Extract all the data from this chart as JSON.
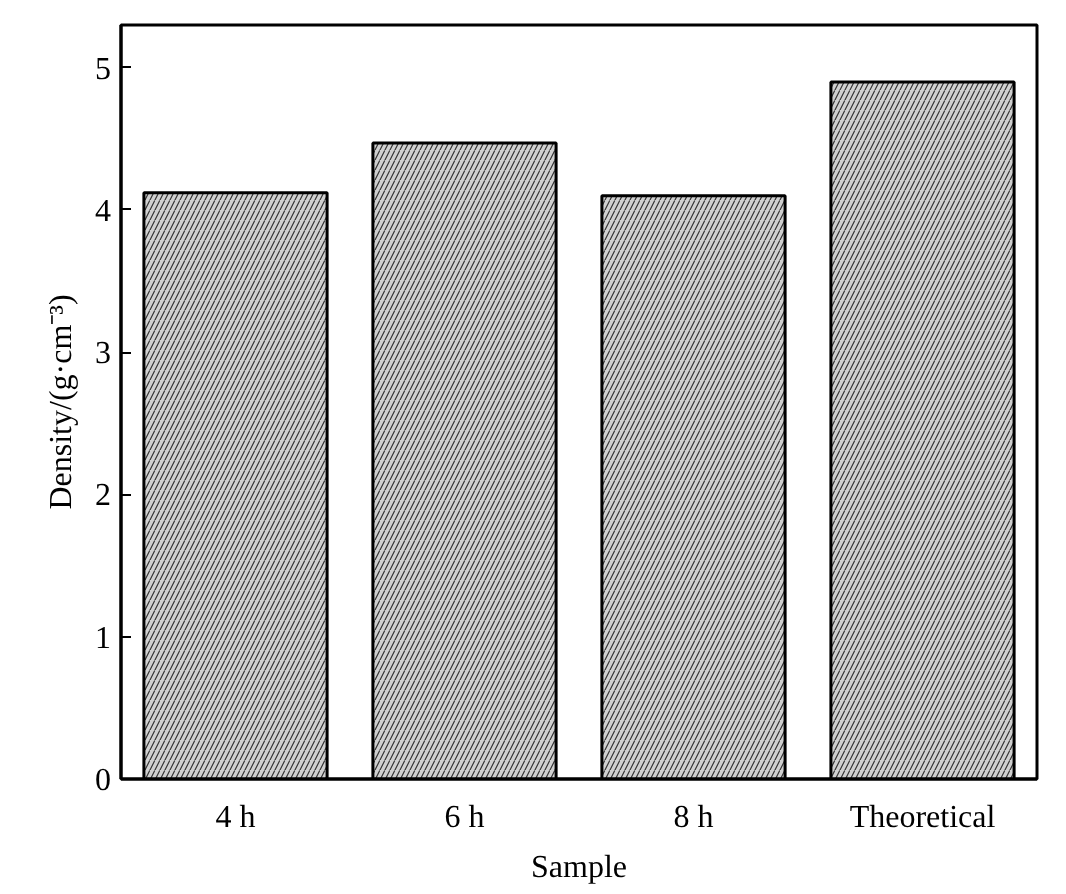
{
  "chart_data": {
    "type": "bar",
    "xlabel": "Sample",
    "ylabel": "Density/(g·cm⁻³)",
    "categories": [
      "4 h",
      "6 h",
      "8 h",
      "Theoretical"
    ],
    "values": [
      4.12,
      4.47,
      4.1,
      4.9
    ],
    "color": "#d0d0d0",
    "ylim": [
      0,
      5.3
    ],
    "yticks": [
      0,
      1,
      2,
      3,
      4,
      5
    ],
    "grid": false
  }
}
